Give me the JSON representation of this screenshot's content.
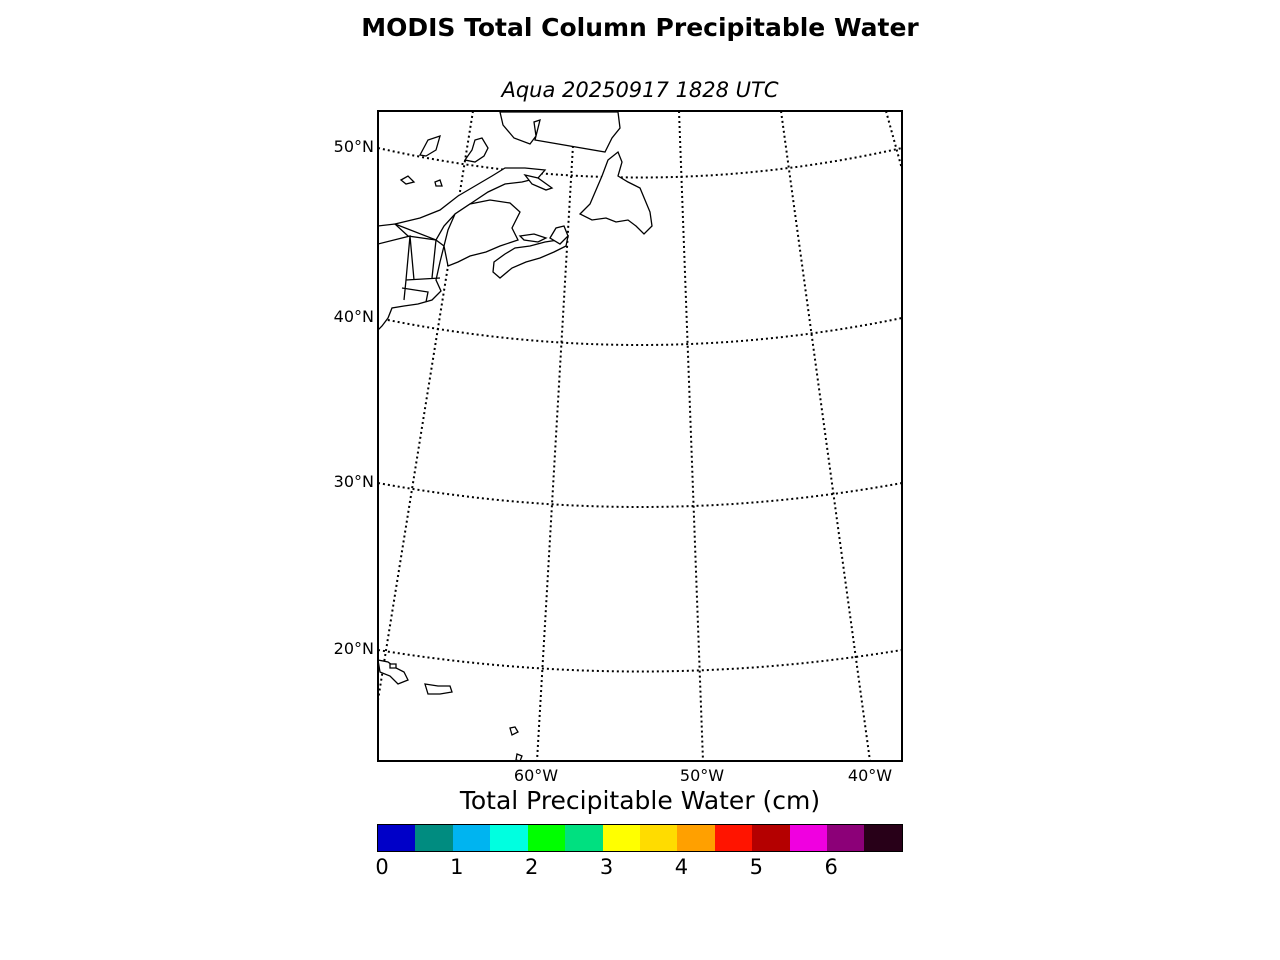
{
  "title": "MODIS Total Column Precipitable Water",
  "subtitle": "Aqua 20250917 1828 UTC",
  "map": {
    "latitude_labels": [
      "50°N",
      "40°N",
      "30°N",
      "20°N"
    ],
    "longitude_labels": [
      "60°W",
      "50°W",
      "40°W"
    ],
    "graticule_style": "dotted",
    "land_fill": "#ffffff",
    "coastline_color": "#000000"
  },
  "colorbar": {
    "title": "Total Precipitable Water (cm)",
    "tick_labels": [
      "0",
      "1",
      "2",
      "3",
      "4",
      "5",
      "6"
    ],
    "colors": [
      "#0000c8",
      "#008c80",
      "#00b4f0",
      "#00ffe0",
      "#00ff00",
      "#00e080",
      "#ffff00",
      "#ffdc00",
      "#ffa000",
      "#ff1400",
      "#b40000",
      "#f000e0",
      "#8c0078",
      "#280018"
    ]
  }
}
